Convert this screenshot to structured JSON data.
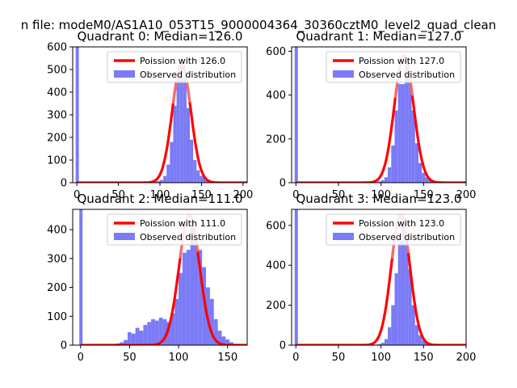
{
  "figure_title": "n file: modeM0/AS1A10_053T15_9000004364_30360cztM0_level2_quad_clean",
  "colors": {
    "hist": "#7b7bf7",
    "fit": "#ff0000",
    "fit_highlight": "#f08080",
    "axis": "#000000"
  },
  "chart_data": [
    {
      "type": "bar",
      "quadrant": 0,
      "title": "Quadrant 0: Median=126.0",
      "median": 126.0,
      "bin_width": 4,
      "xlim": [
        -5,
        205
      ],
      "ylim": [
        0,
        600
      ],
      "x_ticks": [
        0,
        50,
        100,
        150,
        200
      ],
      "y_ticks": [
        0,
        100,
        200,
        300,
        400,
        500,
        600
      ],
      "zero_spike": {
        "x": 0,
        "value": 600
      },
      "bins": [
        [
          80,
          2
        ],
        [
          84,
          3
        ],
        [
          88,
          4
        ],
        [
          92,
          5
        ],
        [
          96,
          7
        ],
        [
          100,
          12
        ],
        [
          104,
          30
        ],
        [
          108,
          80
        ],
        [
          112,
          180
        ],
        [
          116,
          340
        ],
        [
          120,
          480
        ],
        [
          124,
          520
        ],
        [
          128,
          460
        ],
        [
          132,
          330
        ],
        [
          136,
          190
        ],
        [
          140,
          100
        ],
        [
          144,
          55
        ],
        [
          148,
          30
        ],
        [
          152,
          22
        ],
        [
          156,
          14
        ],
        [
          160,
          8
        ],
        [
          164,
          5
        ],
        [
          168,
          3
        ],
        [
          172,
          2
        ],
        [
          176,
          1
        ]
      ],
      "fit": {
        "label": "Poission with 126.0",
        "mean": 126.0,
        "sd": 11.2,
        "peak": 525
      },
      "legend": {
        "position": "upper right",
        "entries": [
          "Poission with 126.0",
          "Observed distribution"
        ]
      }
    },
    {
      "type": "bar",
      "quadrant": 1,
      "title": "Quadrant 1: Median=127.0",
      "median": 127.0,
      "bin_width": 4,
      "xlim": [
        -5,
        200
      ],
      "ylim": [
        0,
        620
      ],
      "x_ticks": [
        0,
        50,
        100,
        150,
        200
      ],
      "y_ticks": [
        0,
        200,
        400,
        600
      ],
      "zero_spike": {
        "x": 0,
        "value": 620
      },
      "bins": [
        [
          40,
          4
        ],
        [
          56,
          3
        ],
        [
          64,
          3
        ],
        [
          76,
          5
        ],
        [
          88,
          3
        ],
        [
          96,
          6
        ],
        [
          100,
          12
        ],
        [
          104,
          25
        ],
        [
          108,
          70
        ],
        [
          112,
          170
        ],
        [
          116,
          330
        ],
        [
          120,
          450
        ],
        [
          124,
          450
        ],
        [
          128,
          560
        ],
        [
          132,
          470
        ],
        [
          136,
          330
        ],
        [
          140,
          180
        ],
        [
          144,
          90
        ],
        [
          148,
          45
        ],
        [
          152,
          25
        ],
        [
          156,
          15
        ],
        [
          160,
          8
        ],
        [
          164,
          5
        ],
        [
          168,
          3
        ],
        [
          172,
          2
        ],
        [
          176,
          1
        ]
      ],
      "fit": {
        "label": "Poission with 127.0",
        "mean": 127.0,
        "sd": 11.3,
        "peak": 580
      },
      "legend": {
        "position": "upper right",
        "entries": [
          "Poission with 127.0",
          "Observed distribution"
        ]
      }
    },
    {
      "type": "bar",
      "quadrant": 2,
      "title": "Quadrant 2: Median=111.0",
      "median": 111.0,
      "bin_width": 4,
      "xlim": [
        -8,
        170
      ],
      "ylim": [
        0,
        470
      ],
      "x_ticks": [
        0,
        50,
        100,
        150
      ],
      "y_ticks": [
        0,
        100,
        200,
        300,
        400
      ],
      "zero_spike": {
        "x": 0,
        "value": 470
      },
      "bins": [
        [
          32,
          3
        ],
        [
          36,
          6
        ],
        [
          40,
          10
        ],
        [
          44,
          18
        ],
        [
          48,
          45
        ],
        [
          52,
          40
        ],
        [
          56,
          60
        ],
        [
          60,
          50
        ],
        [
          64,
          70
        ],
        [
          68,
          80
        ],
        [
          72,
          90
        ],
        [
          76,
          85
        ],
        [
          80,
          95
        ],
        [
          84,
          90
        ],
        [
          88,
          80
        ],
        [
          92,
          110
        ],
        [
          96,
          160
        ],
        [
          100,
          250
        ],
        [
          104,
          320
        ],
        [
          108,
          330
        ],
        [
          112,
          420
        ],
        [
          116,
          350
        ],
        [
          120,
          330
        ],
        [
          124,
          270
        ],
        [
          128,
          200
        ],
        [
          132,
          160
        ],
        [
          136,
          90
        ],
        [
          140,
          50
        ],
        [
          144,
          30
        ],
        [
          148,
          20
        ],
        [
          152,
          10
        ],
        [
          156,
          5
        ],
        [
          160,
          2
        ]
      ],
      "fit": {
        "label": "Poission with 111.0",
        "mean": 111.0,
        "sd": 10.5,
        "peak": 450
      },
      "legend": {
        "position": "upper right",
        "entries": [
          "Poission with 111.0",
          "Observed distribution"
        ]
      }
    },
    {
      "type": "bar",
      "quadrant": 3,
      "title": "Quadrant 3: Median=123.0",
      "median": 123.0,
      "bin_width": 4,
      "xlim": [
        -5,
        200
      ],
      "ylim": [
        0,
        680
      ],
      "x_ticks": [
        0,
        50,
        100,
        150,
        200
      ],
      "y_ticks": [
        0,
        200,
        400,
        600
      ],
      "zero_spike": {
        "x": 0,
        "value": 680
      },
      "bins": [
        [
          88,
          2
        ],
        [
          92,
          3
        ],
        [
          96,
          6
        ],
        [
          100,
          12
        ],
        [
          104,
          30
        ],
        [
          108,
          90
        ],
        [
          112,
          200
        ],
        [
          116,
          360
        ],
        [
          120,
          520
        ],
        [
          124,
          600
        ],
        [
          128,
          510
        ],
        [
          132,
          380
        ],
        [
          136,
          200
        ],
        [
          140,
          100
        ],
        [
          144,
          50
        ],
        [
          148,
          25
        ],
        [
          152,
          12
        ],
        [
          156,
          6
        ],
        [
          160,
          3
        ],
        [
          164,
          2
        ],
        [
          168,
          1
        ]
      ],
      "fit": {
        "label": "Poission with 123.0",
        "mean": 123.0,
        "sd": 11.0,
        "peak": 650
      },
      "legend": {
        "position": "upper right",
        "entries": [
          "Poission with 123.0",
          "Observed distribution"
        ]
      }
    }
  ]
}
